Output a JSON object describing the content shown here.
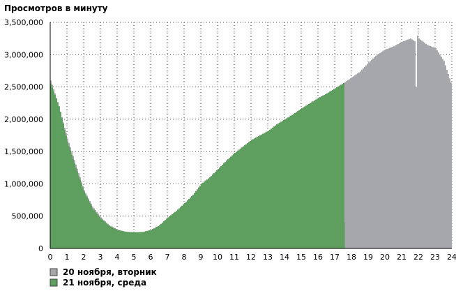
{
  "chart_data": {
    "type": "area",
    "title": "Просмотров в минуту",
    "xlabel": "",
    "ylabel": "",
    "xlim": [
      0,
      24
    ],
    "ylim": [
      0,
      3500000
    ],
    "x_ticks": [
      "0",
      "1",
      "2",
      "3",
      "4",
      "5",
      "6",
      "7",
      "8",
      "9",
      "10",
      "11",
      "12",
      "13",
      "14",
      "15",
      "16",
      "17",
      "18",
      "19",
      "20",
      "21",
      "22",
      "23",
      "24"
    ],
    "y_ticks": [
      "0",
      "500,000",
      "1,000,000",
      "1,500,000",
      "2,000,000",
      "2,500,000",
      "3,000,000",
      "3,500,000"
    ],
    "grid": true,
    "legend_position": "bottom-left",
    "series": [
      {
        "name": "20 ноября, вторник",
        "color": "#a6a6ad",
        "x": [
          0,
          0.5,
          1,
          1.5,
          2,
          2.5,
          3,
          3.5,
          4,
          4.5,
          5,
          5.5,
          6,
          6.5,
          7,
          7.5,
          8,
          8.5,
          9,
          9.5,
          10,
          10.5,
          11,
          11.5,
          12,
          12.5,
          13,
          13.5,
          14,
          14.5,
          15,
          15.5,
          16,
          16.5,
          17,
          17.5,
          18,
          18.5,
          19,
          19.5,
          20,
          20.5,
          21,
          21.5,
          21.8,
          21.85,
          21.9,
          22,
          22.5,
          23,
          23.5,
          24
        ],
        "values": [
          2600000,
          2200000,
          1700000,
          1300000,
          900000,
          650000,
          480000,
          360000,
          290000,
          260000,
          250000,
          255000,
          290000,
          360000,
          480000,
          580000,
          700000,
          830000,
          1000000,
          1100000,
          1230000,
          1360000,
          1480000,
          1580000,
          1680000,
          1750000,
          1820000,
          1920000,
          2000000,
          2080000,
          2170000,
          2250000,
          2330000,
          2400000,
          2480000,
          2560000,
          2650000,
          2740000,
          2880000,
          3000000,
          3080000,
          3130000,
          3200000,
          3250000,
          3200000,
          2150000,
          3300000,
          3250000,
          3150000,
          3100000,
          2900000,
          2500000
        ]
      },
      {
        "name": "21 ноября, среда",
        "color": "#5e9e5e",
        "x": [
          0,
          0.5,
          1,
          1.5,
          2,
          2.5,
          3,
          3.5,
          4,
          4.5,
          5,
          5.5,
          6,
          6.5,
          7,
          7.5,
          8,
          8.5,
          9,
          9.5,
          10,
          10.5,
          11,
          11.5,
          12,
          12.5,
          13,
          13.5,
          14,
          14.5,
          15,
          15.5,
          16,
          16.5,
          17,
          17.5,
          17.55,
          17.6
        ],
        "values": [
          2550000,
          2200000,
          1650000,
          1250000,
          880000,
          620000,
          460000,
          350000,
          285000,
          255000,
          250000,
          255000,
          285000,
          360000,
          480000,
          580000,
          700000,
          830000,
          1000000,
          1100000,
          1230000,
          1360000,
          1480000,
          1580000,
          1680000,
          1750000,
          1820000,
          1920000,
          2000000,
          2080000,
          2170000,
          2250000,
          2330000,
          2400000,
          2480000,
          2560000,
          1200000,
          0
        ]
      }
    ]
  }
}
